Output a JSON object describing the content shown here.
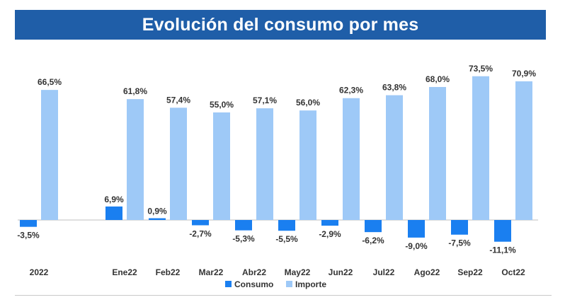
{
  "colors": {
    "title_bg": "#1f5ea8",
    "consumo": "#1a7ff0",
    "importe": "#9ec9f7",
    "baseline": "#bfbfbf",
    "text": "#333333"
  },
  "chart_data": {
    "type": "bar",
    "title": "Evolución del consumo por mes",
    "categories": [
      "2022",
      "Ene22",
      "Feb22",
      "Mar22",
      "Abr22",
      "May22",
      "Jun22",
      "Jul22",
      "Ago22",
      "Sep22",
      "Oct22"
    ],
    "series": [
      {
        "name": "Consumo",
        "values": [
          -3.5,
          6.9,
          0.9,
          -2.7,
          -5.3,
          -5.5,
          -2.9,
          -6.2,
          -9.0,
          -7.5,
          -11.1
        ],
        "labels": [
          "-3,5%",
          "6,9%",
          "0,9%",
          "-2,7%",
          "-5,3%",
          "-5,5%",
          "-2,9%",
          "-6,2%",
          "-9,0%",
          "-7,5%",
          "-11,1%"
        ]
      },
      {
        "name": "Importe",
        "values": [
          66.5,
          61.8,
          57.4,
          55.0,
          57.1,
          56.0,
          62.3,
          63.8,
          68.0,
          73.5,
          70.9
        ],
        "labels": [
          "66,5%",
          "61,8%",
          "57,4%",
          "55,0%",
          "57,1%",
          "56,0%",
          "62,3%",
          "63,8%",
          "68,0%",
          "73,5%",
          "70,9%"
        ]
      }
    ],
    "legend": [
      "Consumo",
      "Importe"
    ],
    "legend_position": "bottom",
    "grid": false,
    "xlabel": "",
    "ylabel": ""
  }
}
